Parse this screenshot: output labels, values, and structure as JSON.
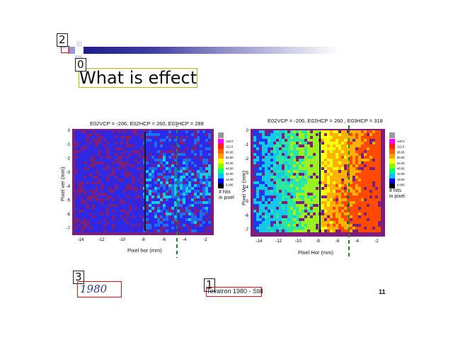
{
  "slide": {
    "title": "What is effect?",
    "footer_text": "Tevatron 1980 - Still",
    "page_number": "11",
    "logo_text": "1980"
  },
  "annotation_tags": [
    "0",
    "1",
    "2",
    "3"
  ],
  "plots": [
    {
      "title": "E02VCP = -206, E02HCP = 260, E03HCP = 289",
      "xlabel": "Pixel hor (mm)",
      "ylabel": "Pixel ver (mm)",
      "xticks": [
        "-14",
        "-12",
        "-10",
        "-8",
        "-6",
        "-4",
        "-2"
      ],
      "yticks": [
        "0",
        "-1",
        "-2",
        "-3",
        "-4",
        "-5",
        "-6",
        "-7"
      ],
      "colorbar_labels": [
        "120.0",
        "112.0",
        "96.00",
        "80.00",
        "64.00",
        "48.00",
        "32.00",
        "16.00",
        "0.000"
      ],
      "units": "# hits\nin pixel"
    },
    {
      "title": "E02VCP = -206, E02HCP = 260 , E03HCP = 318",
      "xlabel": "Pixel Hor (mm)",
      "ylabel": "Pixel Ver (mm)",
      "xticks": [
        "-14",
        "-12",
        "-10",
        "-8",
        "-6",
        "-4",
        "-2"
      ],
      "yticks": [
        "0",
        "-1",
        "-2",
        "-3",
        "-4",
        "-5",
        "-6",
        "-7"
      ],
      "colorbar_labels": [
        "120.0",
        "112.0",
        "96.00",
        "80.00",
        "64.00",
        "48.00",
        "32.00",
        "16.00",
        "0.000"
      ],
      "units": "# hits\nin pixel"
    }
  ],
  "colors": {
    "frame": "#7b1f7b",
    "guide_dash": "#1a8a1a",
    "title_border": "#c8b400",
    "highlight_box": "#e01010"
  }
}
